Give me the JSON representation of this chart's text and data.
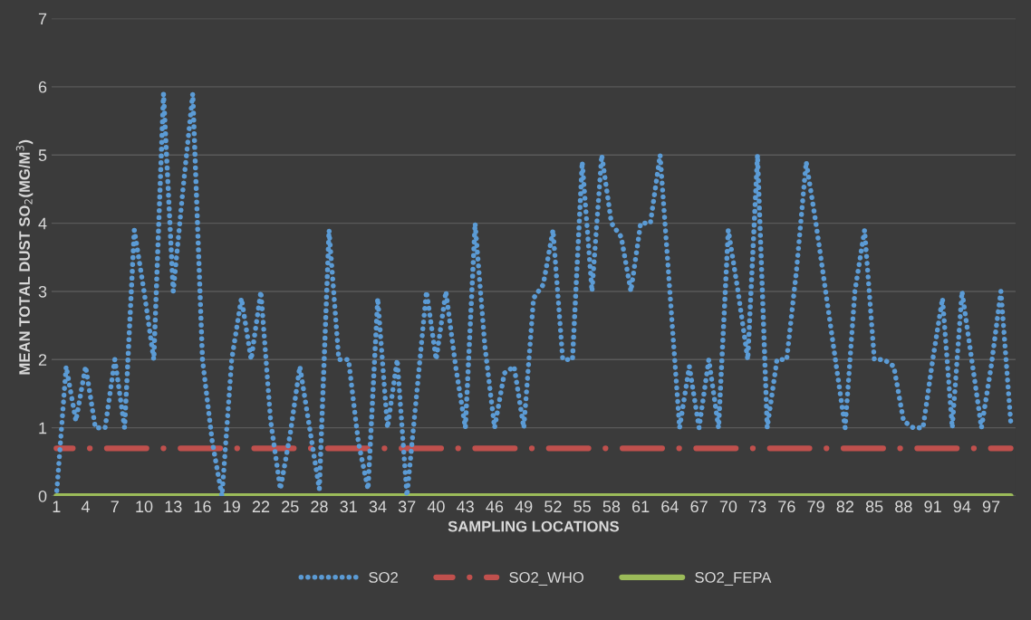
{
  "chart_data": {
    "type": "line",
    "xlabel": "SAMPLING LOCATIONS",
    "ylabel": "MEAN TOTAL DUST SO$_{2}$(MG/M$^{3}$)",
    "categories": [
      "1",
      null,
      null,
      "4",
      null,
      null,
      "7",
      null,
      null,
      "10",
      null,
      null,
      "13",
      null,
      null,
      "16",
      null,
      null,
      "19",
      null,
      null,
      "22",
      null,
      null,
      "25",
      null,
      null,
      "28",
      null,
      null,
      "31",
      null,
      null,
      "34",
      null,
      null,
      "37",
      null,
      null,
      "40",
      null,
      null,
      "43",
      null,
      null,
      "46",
      null,
      null,
      "49",
      null,
      null,
      "52",
      null,
      null,
      "55",
      null,
      null,
      "58",
      null,
      null,
      "61",
      null,
      null,
      "64",
      null,
      null,
      "67",
      null,
      null,
      "70",
      null,
      null,
      "73",
      null,
      null,
      "76",
      null,
      null,
      "79",
      null,
      null,
      "82",
      null,
      null,
      "85",
      null,
      null,
      "88",
      null,
      null,
      "91",
      null,
      null,
      "94",
      null,
      null,
      "97",
      null,
      null
    ],
    "series": [
      {
        "name": "SO2",
        "color": "#5b9bd5",
        "line_style": "dotted",
        "values": [
          0.0,
          1.9,
          1.1,
          1.9,
          1.0,
          1.0,
          2.0,
          1.0,
          3.9,
          3.0,
          2.0,
          5.9,
          3.0,
          4.5,
          5.9,
          2.0,
          0.8,
          0.0,
          2.0,
          2.9,
          2.0,
          3.0,
          1.1,
          0.1,
          0.9,
          1.9,
          1.0,
          0.1,
          3.9,
          2.0,
          2.0,
          0.8,
          0.1,
          2.9,
          1.0,
          2.0,
          0.0,
          1.5,
          3.0,
          2.0,
          3.0,
          1.9,
          1.0,
          4.0,
          2.2,
          1.0,
          1.8,
          1.9,
          1.0,
          2.9,
          3.1,
          3.9,
          2.0,
          2.0,
          4.9,
          3.0,
          5.0,
          4.0,
          3.8,
          3.0,
          4.0,
          4.0,
          5.0,
          3.0,
          1.0,
          1.9,
          1.0,
          2.0,
          1.0,
          3.9,
          3.0,
          2.0,
          5.0,
          1.0,
          2.0,
          2.0,
          3.3,
          4.9,
          4.0,
          3.0,
          2.0,
          1.0,
          3.0,
          3.9,
          2.0,
          2.0,
          1.9,
          1.1,
          1.0,
          1.0,
          2.0,
          2.9,
          1.0,
          3.0,
          2.0,
          1.0,
          1.9,
          3.0,
          1.1
        ]
      },
      {
        "name": "SO2_WHO",
        "color": "#c0504d",
        "line_style": "dashed",
        "values": [
          0.7,
          0.7,
          0.7,
          0.7,
          0.7,
          0.7,
          0.7,
          0.7,
          0.7,
          0.7,
          0.7,
          0.7,
          0.7,
          0.7,
          0.7,
          0.7,
          0.7,
          0.7,
          0.7,
          0.7,
          0.7,
          0.7,
          0.7,
          0.7,
          0.7,
          0.7,
          0.7,
          0.7,
          0.7,
          0.7,
          0.7,
          0.7,
          0.7,
          0.7,
          0.7,
          0.7,
          0.7,
          0.7,
          0.7,
          0.7,
          0.7,
          0.7,
          0.7,
          0.7,
          0.7,
          0.7,
          0.7,
          0.7,
          0.7,
          0.7,
          0.7,
          0.7,
          0.7,
          0.7,
          0.7,
          0.7,
          0.7,
          0.7,
          0.7,
          0.7,
          0.7,
          0.7,
          0.7,
          0.7,
          0.7,
          0.7,
          0.7,
          0.7,
          0.7,
          0.7,
          0.7,
          0.7,
          0.7,
          0.7,
          0.7,
          0.7,
          0.7,
          0.7,
          0.7,
          0.7,
          0.7,
          0.7,
          0.7,
          0.7,
          0.7,
          0.7,
          0.7,
          0.7,
          0.7,
          0.7,
          0.7,
          0.7,
          0.7,
          0.7,
          0.7,
          0.7,
          0.7,
          0.7,
          0.7
        ]
      },
      {
        "name": "SO2_FEPA",
        "color": "#9bbb59",
        "line_style": "solid",
        "values": [
          0.0,
          0.0,
          0.0,
          0.0,
          0.0,
          0.0,
          0.0,
          0.0,
          0.0,
          0.0,
          0.0,
          0.0,
          0.0,
          0.0,
          0.0,
          0.0,
          0.0,
          0.0,
          0.0,
          0.0,
          0.0,
          0.0,
          0.0,
          0.0,
          0.0,
          0.0,
          0.0,
          0.0,
          0.0,
          0.0,
          0.0,
          0.0,
          0.0,
          0.0,
          0.0,
          0.0,
          0.0,
          0.0,
          0.0,
          0.0,
          0.0,
          0.0,
          0.0,
          0.0,
          0.0,
          0.0,
          0.0,
          0.0,
          0.0,
          0.0,
          0.0,
          0.0,
          0.0,
          0.0,
          0.0,
          0.0,
          0.0,
          0.0,
          0.0,
          0.0,
          0.0,
          0.0,
          0.0,
          0.0,
          0.0,
          0.0,
          0.0,
          0.0,
          0.0,
          0.0,
          0.0,
          0.0,
          0.0,
          0.0,
          0.0,
          0.0,
          0.0,
          0.0,
          0.0,
          0.0,
          0.0,
          0.0,
          0.0,
          0.0,
          0.0,
          0.0,
          0.0,
          0.0,
          0.0,
          0.0,
          0.0,
          0.0,
          0.0,
          0.0,
          0.0,
          0.0,
          0.0,
          0.0,
          0.0
        ]
      }
    ],
    "ylim": [
      0,
      7
    ],
    "yticks": [
      0,
      1,
      2,
      3,
      4,
      5,
      6,
      7
    ],
    "grid": "y",
    "legend": "bottom",
    "marker": "none"
  }
}
